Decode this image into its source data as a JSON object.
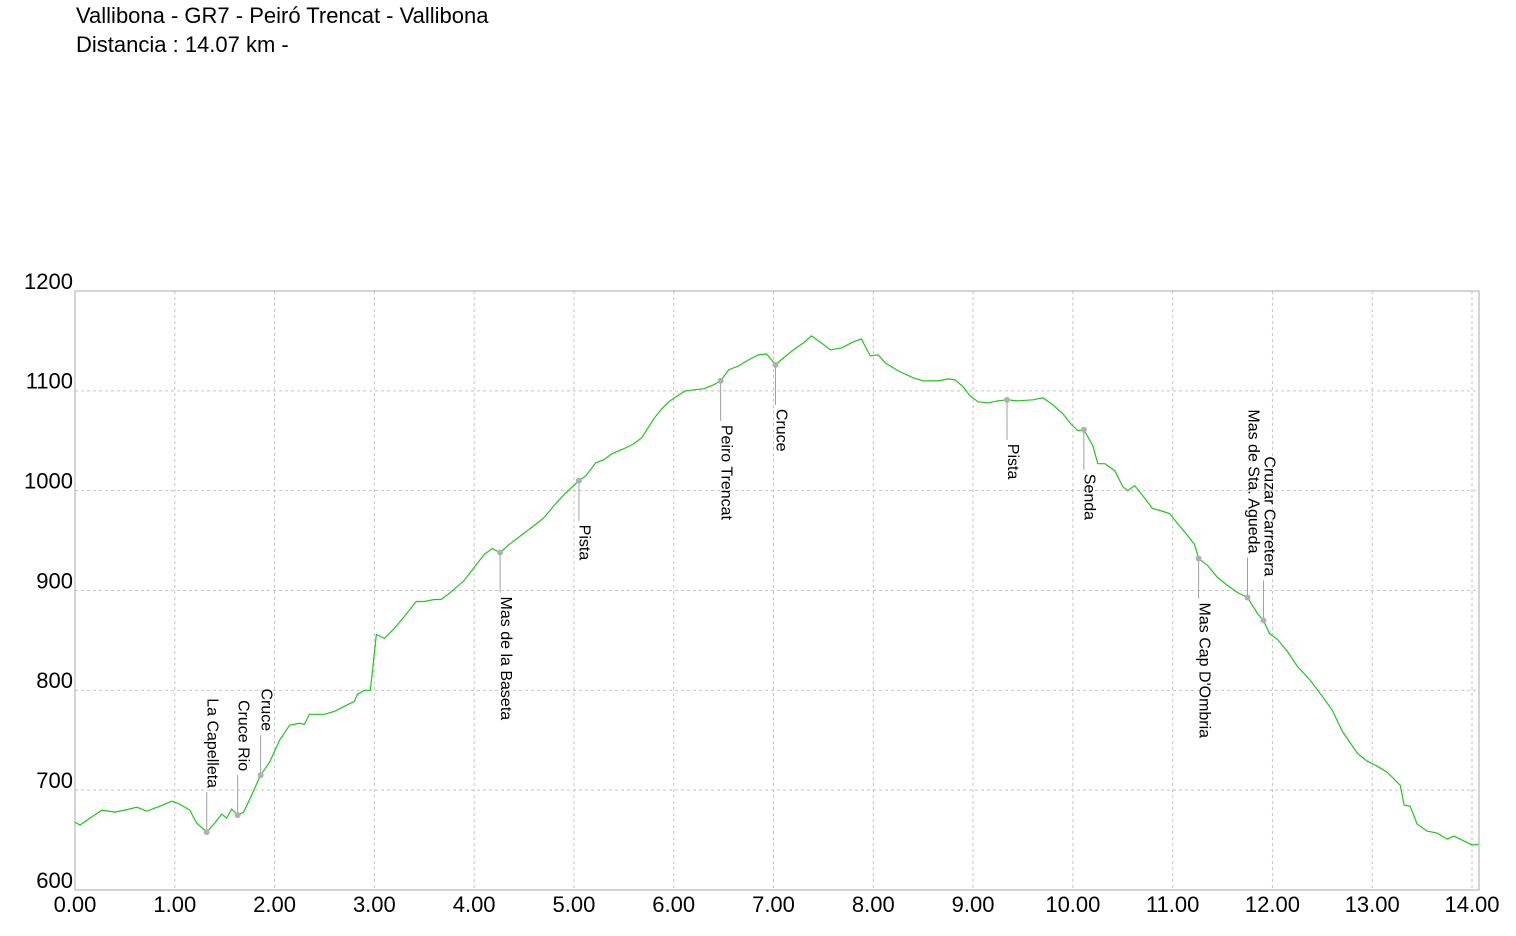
{
  "chart_data": {
    "type": "line",
    "title": "Vallibona - GR7 - Peiró Trencat - Vallibona",
    "subtitle": "Distancia : 14.07 km -",
    "x": [
      0.0,
      0.05,
      0.15,
      0.27,
      0.4,
      0.5,
      0.62,
      0.72,
      0.85,
      0.97,
      1.05,
      1.15,
      1.22,
      1.32,
      1.4,
      1.47,
      1.52,
      1.57,
      1.63,
      1.69,
      1.77,
      1.86,
      1.95,
      2.05,
      2.15,
      2.25,
      2.3,
      2.35,
      2.5,
      2.6,
      2.72,
      2.8,
      2.83,
      2.9,
      2.96,
      3.02,
      3.1,
      3.2,
      3.3,
      3.42,
      3.5,
      3.6,
      3.67,
      3.75,
      3.9,
      4.0,
      4.1,
      4.18,
      4.26,
      4.35,
      4.48,
      4.6,
      4.7,
      4.8,
      4.9,
      5.05,
      5.12,
      5.22,
      5.3,
      5.38,
      5.5,
      5.6,
      5.68,
      5.8,
      5.88,
      5.95,
      6.05,
      6.12,
      6.2,
      6.3,
      6.4,
      6.47,
      6.55,
      6.65,
      6.75,
      6.85,
      6.93,
      7.02,
      7.1,
      7.2,
      7.3,
      7.38,
      7.48,
      7.57,
      7.68,
      7.8,
      7.88,
      7.97,
      8.05,
      8.12,
      8.25,
      8.4,
      8.5,
      8.65,
      8.75,
      8.82,
      8.9,
      8.97,
      9.05,
      9.15,
      9.25,
      9.34,
      9.45,
      9.6,
      9.7,
      9.8,
      9.9,
      9.97,
      10.05,
      10.11,
      10.2,
      10.25,
      10.32,
      10.42,
      10.5,
      10.55,
      10.62,
      10.7,
      10.8,
      10.88,
      10.97,
      11.05,
      11.15,
      11.22,
      11.26,
      11.35,
      11.45,
      11.55,
      11.65,
      11.75,
      11.85,
      11.91,
      11.97,
      12.05,
      12.15,
      12.25,
      12.38,
      12.5,
      12.6,
      12.7,
      12.85,
      12.95,
      13.05,
      13.15,
      13.28,
      13.32,
      13.38,
      13.45,
      13.55,
      13.65,
      13.75,
      13.82,
      13.9,
      14.0,
      14.07
    ],
    "values": [
      668,
      665,
      672,
      680,
      678,
      680,
      683,
      679,
      684,
      689,
      686,
      680,
      667,
      658,
      667,
      676,
      672,
      681,
      675,
      678,
      695,
      715,
      728,
      750,
      765,
      767,
      766,
      776,
      776,
      779,
      785,
      789,
      796,
      800,
      800,
      856,
      852,
      862,
      874,
      889,
      889,
      891,
      891,
      897,
      910,
      923,
      936,
      942,
      938,
      946,
      956,
      965,
      973,
      985,
      996,
      1010,
      1015,
      1028,
      1031,
      1037,
      1042,
      1047,
      1053,
      1072,
      1082,
      1089,
      1096,
      1100,
      1101,
      1102,
      1106,
      1110,
      1121,
      1125,
      1131,
      1136,
      1137,
      1126,
      1133,
      1141,
      1148,
      1155,
      1148,
      1141,
      1143,
      1149,
      1152,
      1135,
      1136,
      1128,
      1120,
      1113,
      1110,
      1110,
      1112,
      1111,
      1104,
      1095,
      1089,
      1088,
      1090,
      1091,
      1090,
      1091,
      1093,
      1086,
      1077,
      1068,
      1060,
      1061,
      1045,
      1027,
      1027,
      1020,
      1004,
      1000,
      1005,
      995,
      982,
      980,
      977,
      967,
      955,
      946,
      932,
      925,
      913,
      905,
      898,
      893,
      877,
      870,
      857,
      851,
      839,
      824,
      810,
      794,
      780,
      759,
      737,
      729,
      724,
      718,
      705,
      685,
      684,
      666,
      659,
      657,
      651,
      654,
      650,
      645,
      646
    ],
    "color": "#22c422",
    "waypoints": [
      {
        "label": "La Capelleta",
        "x": 1.32,
        "y": 658
      },
      {
        "label": "Cruce Rio",
        "x": 1.63,
        "y": 675
      },
      {
        "label": "Cruce",
        "x": 1.86,
        "y": 715
      },
      {
        "label": "Mas de la Baseta",
        "x": 4.26,
        "y": 938
      },
      {
        "label": "Pista",
        "x": 5.05,
        "y": 1010
      },
      {
        "label": "Peiro Trencat",
        "x": 6.47,
        "y": 1110
      },
      {
        "label": "Cruce",
        "x": 7.02,
        "y": 1126
      },
      {
        "label": "Pista",
        "x": 9.34,
        "y": 1091
      },
      {
        "label": "Senda",
        "x": 10.11,
        "y": 1061
      },
      {
        "label": "Mas Cap D'Ombria",
        "x": 11.26,
        "y": 932
      },
      {
        "label": "Mas de Sta. Agueda",
        "x": 11.75,
        "y": 893
      },
      {
        "label": "Cruzar Carretera",
        "x": 11.91,
        "y": 870
      }
    ],
    "waypoint_color": "#b0b0b0",
    "xlim": [
      0,
      14.07
    ],
    "ylim": [
      600,
      1200
    ],
    "xticks": [
      {
        "value": 0,
        "label": "0.00"
      },
      {
        "value": 1,
        "label": "1.00"
      },
      {
        "value": 2,
        "label": "2.00"
      },
      {
        "value": 3,
        "label": "3.00"
      },
      {
        "value": 4,
        "label": "4.00"
      },
      {
        "value": 5,
        "label": "5.00"
      },
      {
        "value": 6,
        "label": "6.00"
      },
      {
        "value": 7,
        "label": "7.00"
      },
      {
        "value": 8,
        "label": "8.00"
      },
      {
        "value": 9,
        "label": "9.00"
      },
      {
        "value": 10,
        "label": "10.00"
      },
      {
        "value": 11,
        "label": "11.00"
      },
      {
        "value": 12,
        "label": "12.00"
      },
      {
        "value": 13,
        "label": "13.00"
      },
      {
        "value": 14,
        "label": "14.00"
      }
    ],
    "yticks": [
      600,
      700,
      800,
      900,
      1000,
      1100,
      1200
    ],
    "grid": true
  }
}
